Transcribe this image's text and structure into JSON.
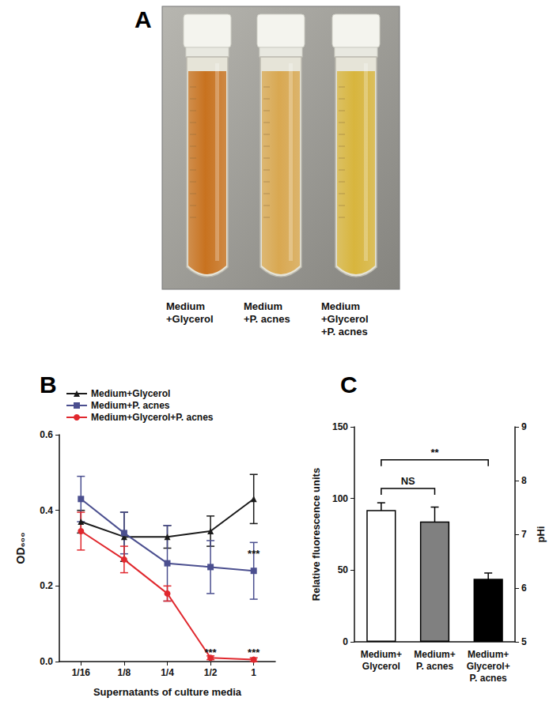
{
  "panel_labels": [
    "A",
    "B",
    "C"
  ],
  "photo": {
    "captions": [
      [
        "Medium",
        "+Glycerol"
      ],
      [
        "Medium",
        "+P. acnes"
      ],
      [
        "Medium",
        "+Glycerol",
        "+P. acnes"
      ]
    ],
    "colors": [
      "#c8721f",
      "#d9a851",
      "#d8b53d"
    ]
  },
  "chart_data": [
    {
      "type": "line",
      "x_label": "Supernatants of culture media",
      "y_label": "OD₆₀₀",
      "categories": [
        "1/16",
        "1/8",
        "1/4",
        "1/2",
        "1"
      ],
      "ylim": [
        0,
        0.6
      ],
      "yticks": [
        {
          "value": 0,
          "label": "0.0"
        },
        {
          "value": 0.2,
          "label": "0.2"
        },
        {
          "value": 0.4,
          "label": "0.4"
        },
        {
          "value": 0.6,
          "label": "0.6"
        }
      ],
      "grid": false,
      "legend": "top-left",
      "series": [
        {
          "name": "Medium+Glycerol",
          "color": "#1a1a1a",
          "marker": "triangle",
          "values": [
            0.37,
            0.33,
            0.33,
            0.345,
            0.43
          ],
          "errors": [
            0.03,
            0.065,
            0.03,
            0.04,
            0.065
          ]
        },
        {
          "name": "Medium+P. acnes",
          "color": "#4b4f8f",
          "marker": "square",
          "values": [
            0.43,
            0.34,
            0.26,
            0.25,
            0.24
          ],
          "errors": [
            0.06,
            0.055,
            0.1,
            0.07,
            0.075
          ]
        },
        {
          "name": "Medium+Glycerol+P. acnes",
          "color": "#e0282e",
          "marker": "circle",
          "values": [
            0.345,
            0.27,
            0.18,
            0.01,
            0.005
          ],
          "errors": [
            0.05,
            0.035,
            0.02,
            0.005,
            0.005
          ]
        }
      ],
      "annotations": [
        {
          "text": "***",
          "x": "1",
          "y": 0.285
        },
        {
          "text": "***",
          "x": "1/2",
          "y": 0.025
        },
        {
          "text": "***",
          "x": "1",
          "y": 0.025
        }
      ]
    },
    {
      "type": "bar",
      "y_label": "Relative fluorescence units",
      "y2_label": "pHi",
      "categories": [
        "Medium+\nGlycerol",
        "Medium+\nP. acnes",
        "Medium+\nGlycerol+\nP. acnes"
      ],
      "values": [
        92,
        84,
        44
      ],
      "errors": [
        5,
        10,
        4
      ],
      "colors": [
        "#ffffff",
        "#808080",
        "#000000"
      ],
      "ylim": [
        0,
        150
      ],
      "yticks": [
        0,
        50,
        100,
        150
      ],
      "y2lim": [
        5,
        9
      ],
      "y2ticks": [
        5,
        6,
        7,
        8,
        9
      ],
      "grid": false,
      "comparisons": [
        {
          "from": "Medium+\nGlycerol",
          "to": "Medium+\nP. acnes",
          "y": 107,
          "label": "NS"
        },
        {
          "from": "Medium+\nGlycerol",
          "to": "Medium+\nGlycerol+\nP. acnes",
          "y": 127,
          "label": "**"
        }
      ]
    }
  ]
}
